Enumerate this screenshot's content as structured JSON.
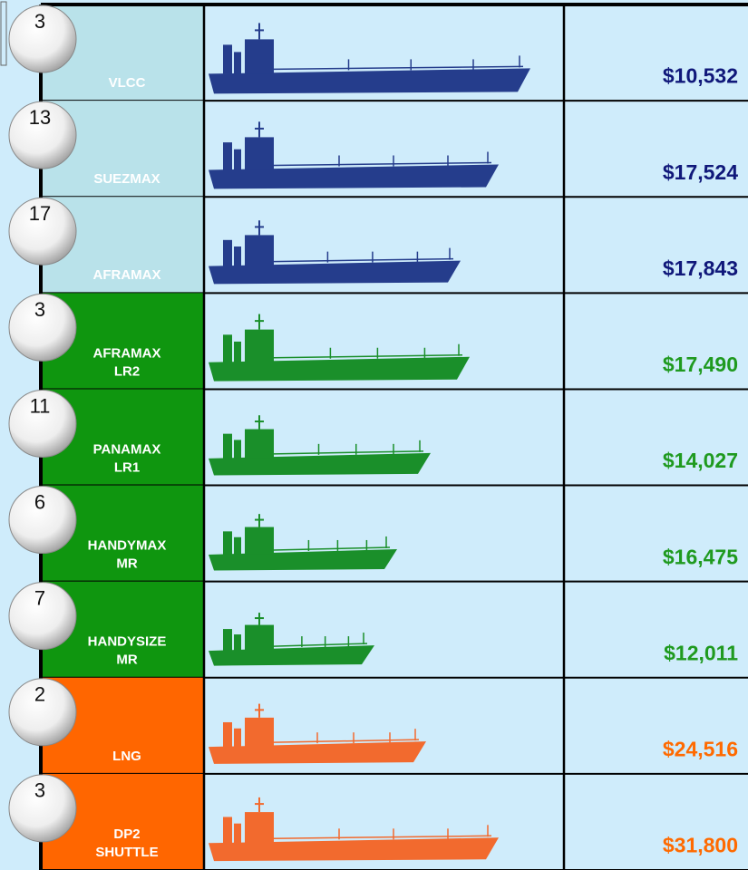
{
  "rows": [
    {
      "count": 3,
      "label": [
        "VLCC"
      ],
      "rate": "$10,532"
    },
    {
      "count": 13,
      "label": [
        "SUEZMAX"
      ],
      "rate": "$17,524"
    },
    {
      "count": 17,
      "label": [
        "AFRAMAX"
      ],
      "rate": "$17,843"
    },
    {
      "count": 3,
      "label": [
        "AFRAMAX",
        "LR2"
      ],
      "rate": "$17,490"
    },
    {
      "count": 11,
      "label": [
        "PANAMAX",
        "LR1"
      ],
      "rate": "$14,027"
    },
    {
      "count": 6,
      "label": [
        "HANDYMAX",
        "MR"
      ],
      "rate": "$16,475"
    },
    {
      "count": 7,
      "label": [
        "HANDYSIZE",
        "MR"
      ],
      "rate": "$12,011"
    },
    {
      "count": 2,
      "label": [
        "LNG"
      ],
      "rate": "$24,516"
    },
    {
      "count": 3,
      "label": [
        "DP2",
        "SHUTTLE"
      ],
      "rate": "$31,800"
    }
  ]
}
